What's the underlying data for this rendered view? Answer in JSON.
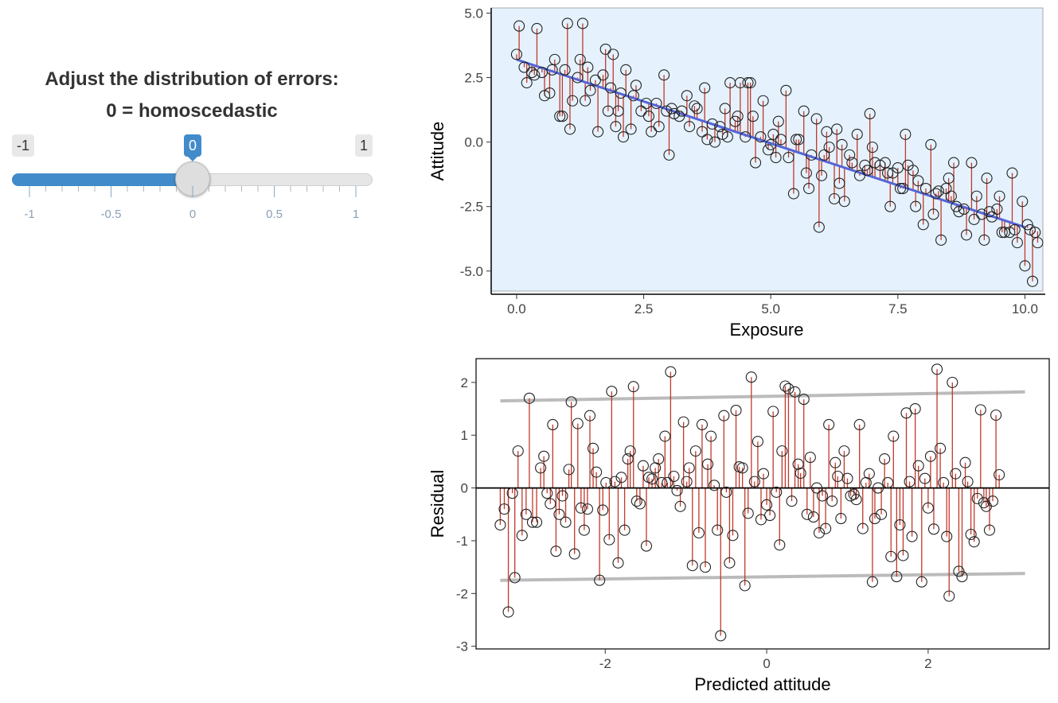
{
  "control": {
    "title_line1": "Adjust the distribution of errors:",
    "title_line2": "0 = homoscedastic",
    "slider": {
      "min": -1,
      "max": 1,
      "value": 0,
      "min_label": "-1",
      "max_label": "1",
      "value_label": "0",
      "tick_labels": [
        "-1",
        "-0.5",
        "0",
        "0.5",
        "1"
      ],
      "accent_color": "#428bca"
    }
  },
  "chart_data": [
    {
      "type": "scatter",
      "xlabel": "Exposure",
      "ylabel": "Attitude",
      "xlim": [
        -0.5,
        10.4
      ],
      "ylim": [
        -5.9,
        5.2
      ],
      "x_ticks": [
        0,
        2.5,
        5,
        7.5,
        10
      ],
      "x_tick_labels": [
        "0.0",
        "2.5",
        "5.0",
        "7.5",
        "10.0"
      ],
      "y_ticks": [
        -5,
        -2.5,
        0,
        2.5,
        5
      ],
      "y_tick_labels": [
        "-5.0",
        "-2.5",
        "0.0",
        "2.5",
        "5.0"
      ],
      "background": "#e5f2fd",
      "fit_line": {
        "x": [
          0,
          10
        ],
        "y": [
          3.2,
          -3.3
        ],
        "color": "#5565d6"
      },
      "residual_color": "#c0392b",
      "point_outline": "#222222",
      "points": [
        [
          0.0,
          3.4
        ],
        [
          0.05,
          4.5
        ],
        [
          0.15,
          2.9
        ],
        [
          0.2,
          2.3
        ],
        [
          0.3,
          2.7
        ],
        [
          0.35,
          2.6
        ],
        [
          0.4,
          4.4
        ],
        [
          0.5,
          2.7
        ],
        [
          0.55,
          1.8
        ],
        [
          0.65,
          1.9
        ],
        [
          0.7,
          2.8
        ],
        [
          0.75,
          3.2
        ],
        [
          0.85,
          1.0
        ],
        [
          0.9,
          1.0
        ],
        [
          0.95,
          2.8
        ],
        [
          1.0,
          4.6
        ],
        [
          1.05,
          0.5
        ],
        [
          1.1,
          1.6
        ],
        [
          1.2,
          2.5
        ],
        [
          1.25,
          3.2
        ],
        [
          1.3,
          4.6
        ],
        [
          1.35,
          1.6
        ],
        [
          1.4,
          2.9
        ],
        [
          1.45,
          2.0
        ],
        [
          1.55,
          2.4
        ],
        [
          1.6,
          0.4
        ],
        [
          1.7,
          2.6
        ],
        [
          1.75,
          3.6
        ],
        [
          1.8,
          1.2
        ],
        [
          1.85,
          2.1
        ],
        [
          1.9,
          3.4
        ],
        [
          1.95,
          0.6
        ],
        [
          2.0,
          1.2
        ],
        [
          2.05,
          1.9
        ],
        [
          2.1,
          0.2
        ],
        [
          2.15,
          2.8
        ],
        [
          2.25,
          0.5
        ],
        [
          2.3,
          1.8
        ],
        [
          2.35,
          2.2
        ],
        [
          2.45,
          1.2
        ],
        [
          2.55,
          1.5
        ],
        [
          2.6,
          1.0
        ],
        [
          2.65,
          0.4
        ],
        [
          2.75,
          1.5
        ],
        [
          2.8,
          0.6
        ],
        [
          2.9,
          2.6
        ],
        [
          2.95,
          1.2
        ],
        [
          3.0,
          -0.5
        ],
        [
          3.05,
          1.3
        ],
        [
          3.1,
          1.1
        ],
        [
          3.2,
          1.0
        ],
        [
          3.25,
          1.2
        ],
        [
          3.35,
          1.8
        ],
        [
          3.4,
          0.6
        ],
        [
          3.5,
          1.4
        ],
        [
          3.55,
          1.3
        ],
        [
          3.65,
          0.4
        ],
        [
          3.7,
          2.1
        ],
        [
          3.75,
          0.1
        ],
        [
          3.85,
          0.7
        ],
        [
          3.9,
          0.0
        ],
        [
          4.0,
          0.6
        ],
        [
          4.05,
          0.3
        ],
        [
          4.1,
          1.3
        ],
        [
          4.15,
          0.2
        ],
        [
          4.2,
          2.3
        ],
        [
          4.3,
          0.8
        ],
        [
          4.35,
          1.0
        ],
        [
          4.4,
          2.3
        ],
        [
          4.5,
          0.2
        ],
        [
          4.55,
          2.3
        ],
        [
          4.6,
          2.3
        ],
        [
          4.65,
          1.0
        ],
        [
          4.7,
          -0.8
        ],
        [
          4.8,
          0.2
        ],
        [
          4.85,
          1.6
        ],
        [
          4.95,
          -0.3
        ],
        [
          5.0,
          -0.1
        ],
        [
          5.05,
          0.3
        ],
        [
          5.1,
          -0.6
        ],
        [
          5.15,
          0.8
        ],
        [
          5.2,
          0.1
        ],
        [
          5.3,
          2.0
        ],
        [
          5.35,
          -0.6
        ],
        [
          5.45,
          -2.0
        ],
        [
          5.5,
          0.1
        ],
        [
          5.55,
          0.1
        ],
        [
          5.65,
          1.2
        ],
        [
          5.7,
          -1.2
        ],
        [
          5.75,
          -1.8
        ],
        [
          5.8,
          -0.5
        ],
        [
          5.9,
          0.9
        ],
        [
          5.95,
          -3.3
        ],
        [
          6.0,
          -1.3
        ],
        [
          6.05,
          -0.5
        ],
        [
          6.1,
          0.4
        ],
        [
          6.15,
          -0.2
        ],
        [
          6.25,
          -2.2
        ],
        [
          6.3,
          0.5
        ],
        [
          6.35,
          -1.6
        ],
        [
          6.4,
          -0.1
        ],
        [
          6.45,
          -2.3
        ],
        [
          6.55,
          -0.5
        ],
        [
          6.6,
          -0.8
        ],
        [
          6.7,
          0.3
        ],
        [
          6.75,
          -1.3
        ],
        [
          6.85,
          -0.9
        ],
        [
          6.9,
          -1.1
        ],
        [
          6.95,
          1.1
        ],
        [
          7.0,
          -0.2
        ],
        [
          7.05,
          -0.8
        ],
        [
          7.15,
          -0.9
        ],
        [
          7.25,
          -0.8
        ],
        [
          7.3,
          -1.2
        ],
        [
          7.35,
          -2.5
        ],
        [
          7.4,
          -1.2
        ],
        [
          7.5,
          -1.0
        ],
        [
          7.55,
          -1.8
        ],
        [
          7.6,
          -1.8
        ],
        [
          7.65,
          0.3
        ],
        [
          7.7,
          -0.9
        ],
        [
          7.8,
          -1.1
        ],
        [
          7.85,
          -2.5
        ],
        [
          7.9,
          -1.5
        ],
        [
          8.0,
          -3.2
        ],
        [
          8.05,
          -1.8
        ],
        [
          8.15,
          -0.1
        ],
        [
          8.2,
          -2.8
        ],
        [
          8.25,
          -2.0
        ],
        [
          8.3,
          -1.9
        ],
        [
          8.35,
          -3.8
        ],
        [
          8.45,
          -1.8
        ],
        [
          8.5,
          -1.4
        ],
        [
          8.55,
          -2.1
        ],
        [
          8.6,
          -0.8
        ],
        [
          8.65,
          -2.5
        ],
        [
          8.7,
          -2.7
        ],
        [
          8.8,
          -2.6
        ],
        [
          8.85,
          -3.6
        ],
        [
          8.95,
          -0.8
        ],
        [
          9.0,
          -3.0
        ],
        [
          9.05,
          -2.1
        ],
        [
          9.15,
          -2.8
        ],
        [
          9.2,
          -3.8
        ],
        [
          9.25,
          -1.4
        ],
        [
          9.3,
          -2.7
        ],
        [
          9.35,
          -2.9
        ],
        [
          9.45,
          -2.6
        ],
        [
          9.5,
          -2.1
        ],
        [
          9.55,
          -3.5
        ],
        [
          9.6,
          -3.5
        ],
        [
          9.7,
          -3.5
        ],
        [
          9.75,
          -1.2
        ],
        [
          9.8,
          -3.4
        ],
        [
          9.85,
          -3.9
        ],
        [
          9.95,
          -2.3
        ],
        [
          10.0,
          -4.8
        ],
        [
          10.05,
          -3.2
        ],
        [
          10.1,
          -3.4
        ],
        [
          10.15,
          -5.4
        ],
        [
          10.2,
          -3.5
        ],
        [
          10.25,
          -3.9
        ]
      ]
    },
    {
      "type": "scatter",
      "xlabel": "Predicted attitude",
      "ylabel": "Residual",
      "xlim": [
        -3.6,
        3.5
      ],
      "ylim": [
        -3.05,
        2.45
      ],
      "x_ticks": [
        -2,
        0,
        2
      ],
      "x_tick_labels": [
        "-2",
        "0",
        "2"
      ],
      "y_ticks": [
        -3,
        -2,
        -1,
        0,
        1,
        2
      ],
      "y_tick_labels": [
        "-3",
        "-2",
        "-1",
        "0",
        "1",
        "2"
      ],
      "band_upper": {
        "x": [
          -3.3,
          3.2
        ],
        "y": [
          1.65,
          1.82
        ],
        "color": "#bbbbbb"
      },
      "band_lower": {
        "x": [
          -3.3,
          3.2
        ],
        "y": [
          -1.75,
          -1.62
        ],
        "color": "#bbbbbb"
      },
      "zero_line_color": "#000000",
      "residual_color": "#c0392b",
      "point_outline": "#222222",
      "points": [
        [
          -3.3,
          -0.7
        ],
        [
          -3.25,
          -0.4
        ],
        [
          -3.2,
          -2.35
        ],
        [
          -3.15,
          -0.1
        ],
        [
          -3.12,
          -1.7
        ],
        [
          -3.08,
          0.7
        ],
        [
          -3.03,
          -0.9
        ],
        [
          -2.98,
          -0.5
        ],
        [
          -2.94,
          1.7
        ],
        [
          -2.9,
          -0.65
        ],
        [
          -2.85,
          -0.65
        ],
        [
          -2.8,
          0.38
        ],
        [
          -2.76,
          0.6
        ],
        [
          -2.72,
          -0.1
        ],
        [
          -2.68,
          -0.3
        ],
        [
          -2.65,
          1.2
        ],
        [
          -2.61,
          -1.2
        ],
        [
          -2.57,
          -0.5
        ],
        [
          -2.53,
          -0.15
        ],
        [
          -2.49,
          -0.65
        ],
        [
          -2.45,
          0.35
        ],
        [
          -2.42,
          1.63
        ],
        [
          -2.38,
          -1.25
        ],
        [
          -2.34,
          1.22
        ],
        [
          -2.3,
          -0.38
        ],
        [
          -2.26,
          -0.8
        ],
        [
          -2.22,
          -0.4
        ],
        [
          -2.19,
          1.37
        ],
        [
          -2.15,
          0.75
        ],
        [
          -2.11,
          0.3
        ],
        [
          -2.07,
          -1.75
        ],
        [
          -2.03,
          -0.42
        ],
        [
          -1.99,
          0.1
        ],
        [
          -1.95,
          -0.98
        ],
        [
          -1.92,
          1.83
        ],
        [
          -1.88,
          0.12
        ],
        [
          -1.84,
          -1.42
        ],
        [
          -1.8,
          0.2
        ],
        [
          -1.76,
          -0.8
        ],
        [
          -1.72,
          0.55
        ],
        [
          -1.69,
          0.7
        ],
        [
          -1.65,
          1.92
        ],
        [
          -1.61,
          -0.25
        ],
        [
          -1.57,
          -0.3
        ],
        [
          -1.53,
          0.42
        ],
        [
          -1.49,
          -1.1
        ],
        [
          -1.46,
          0.2
        ],
        [
          -1.42,
          0.17
        ],
        [
          -1.38,
          0.38
        ],
        [
          -1.34,
          0.55
        ],
        [
          -1.3,
          0.1
        ],
        [
          -1.26,
          0.98
        ],
        [
          -1.23,
          0.1
        ],
        [
          -1.19,
          2.2
        ],
        [
          -1.15,
          0.22
        ],
        [
          -1.11,
          -0.05
        ],
        [
          -1.07,
          -0.35
        ],
        [
          -1.03,
          1.25
        ],
        [
          -0.99,
          0.12
        ],
        [
          -0.96,
          0.38
        ],
        [
          -0.92,
          -1.47
        ],
        [
          -0.88,
          0.7
        ],
        [
          -0.84,
          -0.85
        ],
        [
          -0.8,
          1.2
        ],
        [
          -0.76,
          -1.5
        ],
        [
          -0.73,
          0.45
        ],
        [
          -0.69,
          0.98
        ],
        [
          -0.65,
          0.05
        ],
        [
          -0.61,
          -0.8
        ],
        [
          -0.57,
          -2.8
        ],
        [
          -0.53,
          1.37
        ],
        [
          -0.5,
          -0.08
        ],
        [
          -0.46,
          -1.42
        ],
        [
          -0.42,
          -0.9
        ],
        [
          -0.38,
          1.47
        ],
        [
          -0.34,
          0.4
        ],
        [
          -0.3,
          0.38
        ],
        [
          -0.27,
          -1.85
        ],
        [
          -0.23,
          -0.48
        ],
        [
          -0.19,
          2.1
        ],
        [
          -0.15,
          0.12
        ],
        [
          -0.11,
          0.88
        ],
        [
          -0.07,
          -0.6
        ],
        [
          -0.04,
          0.27
        ],
        [
          0.0,
          -0.32
        ],
        [
          0.04,
          -0.52
        ],
        [
          0.08,
          1.45
        ],
        [
          0.12,
          -0.08
        ],
        [
          0.16,
          -1.08
        ],
        [
          0.19,
          0.7
        ],
        [
          0.23,
          1.93
        ],
        [
          0.27,
          1.88
        ],
        [
          0.31,
          -0.25
        ],
        [
          0.35,
          1.82
        ],
        [
          0.39,
          0.45
        ],
        [
          0.42,
          0.28
        ],
        [
          0.46,
          1.68
        ],
        [
          0.5,
          -0.5
        ],
        [
          0.54,
          0.58
        ],
        [
          0.58,
          -0.55
        ],
        [
          0.62,
          0.0
        ],
        [
          0.65,
          -0.85
        ],
        [
          0.69,
          -0.15
        ],
        [
          0.73,
          -0.77
        ],
        [
          0.77,
          1.2
        ],
        [
          0.81,
          -0.25
        ],
        [
          0.85,
          0.48
        ],
        [
          0.88,
          0.22
        ],
        [
          0.92,
          -0.58
        ],
        [
          0.96,
          0.7
        ],
        [
          1.0,
          0.18
        ],
        [
          1.04,
          -0.15
        ],
        [
          1.08,
          -0.12
        ],
        [
          1.11,
          -0.22
        ],
        [
          1.15,
          1.2
        ],
        [
          1.19,
          -0.77
        ],
        [
          1.23,
          0.1
        ],
        [
          1.27,
          0.27
        ],
        [
          1.31,
          -1.78
        ],
        [
          1.34,
          -0.58
        ],
        [
          1.38,
          0.0
        ],
        [
          1.42,
          -0.5
        ],
        [
          1.46,
          0.55
        ],
        [
          1.5,
          0.1
        ],
        [
          1.54,
          -1.3
        ],
        [
          1.57,
          0.98
        ],
        [
          1.61,
          -1.68
        ],
        [
          1.65,
          -0.7
        ],
        [
          1.69,
          -1.28
        ],
        [
          1.73,
          1.42
        ],
        [
          1.77,
          0.12
        ],
        [
          1.8,
          -0.92
        ],
        [
          1.84,
          1.5
        ],
        [
          1.88,
          0.42
        ],
        [
          1.92,
          -1.78
        ],
        [
          1.96,
          0.18
        ],
        [
          2.0,
          -0.38
        ],
        [
          2.03,
          0.6
        ],
        [
          2.07,
          -0.78
        ],
        [
          2.11,
          2.25
        ],
        [
          2.15,
          0.75
        ],
        [
          2.19,
          0.1
        ],
        [
          2.23,
          -0.92
        ],
        [
          2.26,
          -2.05
        ],
        [
          2.3,
          2.0
        ],
        [
          2.34,
          0.27
        ],
        [
          2.38,
          -1.58
        ],
        [
          2.42,
          -1.68
        ],
        [
          2.46,
          0.48
        ],
        [
          2.49,
          0.12
        ],
        [
          2.53,
          -0.88
        ],
        [
          2.57,
          -1.02
        ],
        [
          2.61,
          -0.2
        ],
        [
          2.65,
          1.48
        ],
        [
          2.69,
          -0.28
        ],
        [
          2.72,
          -0.35
        ],
        [
          2.76,
          -0.8
        ],
        [
          2.8,
          -0.25
        ],
        [
          2.84,
          1.38
        ],
        [
          2.88,
          0.25
        ]
      ]
    }
  ]
}
